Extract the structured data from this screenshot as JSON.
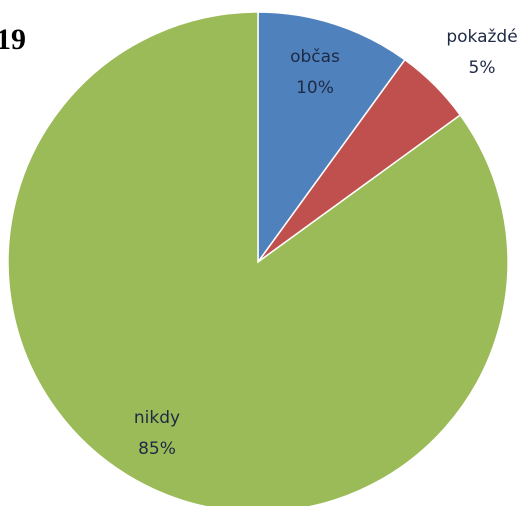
{
  "chart_data": {
    "type": "pie",
    "title": "19",
    "categories": [
      "občas",
      "pokaždé",
      "nikdy"
    ],
    "values": [
      10,
      5,
      85
    ],
    "value_labels": [
      "10%",
      "5%",
      "85%"
    ],
    "colors": [
      "#4f81bd",
      "#c0504d",
      "#9bbb59"
    ]
  }
}
